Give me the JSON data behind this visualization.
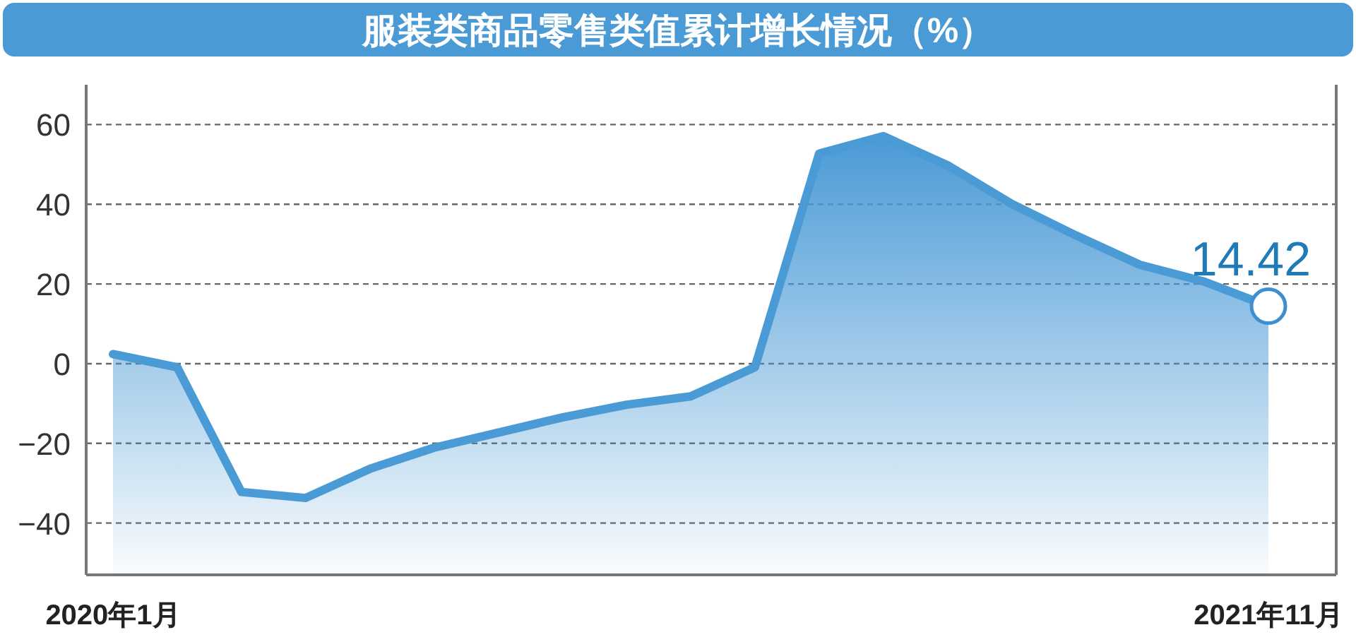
{
  "chart_data": {
    "type": "area",
    "title": "服装类商品零售类值累计增长情况（%）",
    "categories": [
      "2020年1月",
      null,
      null,
      null,
      null,
      null,
      null,
      null,
      null,
      null,
      null,
      null,
      null,
      null,
      null,
      null,
      null,
      null,
      "2021年11月"
    ],
    "series": [
      {
        "color": "#4a9ad6",
        "values": [
          2.4,
          -0.9,
          -32.2,
          -33.7,
          -26.4,
          -21.1,
          -17.3,
          -13.5,
          -10.3,
          -8.2,
          -0.9,
          52.7,
          57.1,
          49.8,
          40.1,
          32.2,
          24.8,
          20.6,
          14.42
        ]
      }
    ],
    "ylim": [
      -53,
      70
    ],
    "yticks": [
      -40,
      -20,
      0,
      20,
      40,
      60
    ],
    "grid": "y",
    "annotations": [
      {
        "text": "14.42",
        "x": "2021年11月",
        "y": 14.42
      }
    ]
  }
}
